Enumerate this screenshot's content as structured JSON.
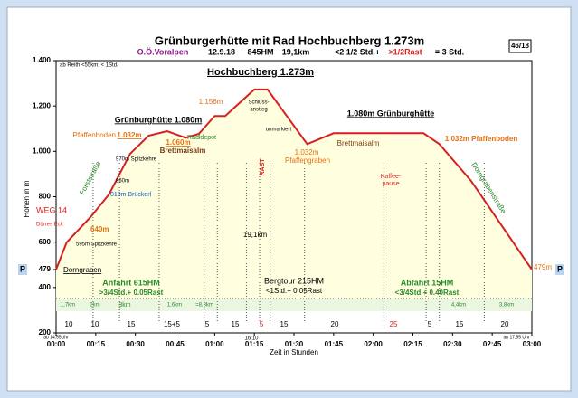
{
  "chart_data": {
    "type": "area",
    "title": "Grünburgerhütte mit Rad  Hochbuchberg 1.273m",
    "badge": "46/18",
    "subtitle": [
      "O.Ö.Voralpen",
      "12.9.18",
      "845HM",
      "19,1km",
      "<2 1/2 Std.+",
      ">1/2Rast",
      "= 3 Std."
    ],
    "x_label": "Zeit in Stunden",
    "y_label": "Höhen in m",
    "x": [
      0,
      4,
      13,
      20,
      28,
      35,
      42,
      49,
      54,
      60,
      64,
      75,
      80,
      95,
      105,
      115,
      139,
      145,
      157,
      180
    ],
    "values": [
      479,
      599,
      710,
      810,
      989,
      1069,
      1089,
      1060,
      1077,
      1156,
      1156,
      1273,
      1273,
      1032,
      1080,
      1080,
      1080,
      1032,
      870,
      479
    ],
    "color": "#d62020",
    "fill": "#ffffe0",
    "xlim": [
      0,
      180
    ],
    "ylim": [
      200,
      1400
    ],
    "xticks": [
      {
        "value": 0,
        "label": "00:00"
      },
      {
        "value": 15,
        "label": "00:15"
      },
      {
        "value": 30,
        "label": "00:30"
      },
      {
        "value": 45,
        "label": "00:45"
      },
      {
        "value": 60,
        "label": "01:00"
      },
      {
        "value": 75,
        "label": "01:15"
      },
      {
        "value": 90,
        "label": "01:30"
      },
      {
        "value": 105,
        "label": "01:45"
      },
      {
        "value": 120,
        "label": "02:00"
      },
      {
        "value": 135,
        "label": "02:15"
      },
      {
        "value": 150,
        "label": "02:30"
      },
      {
        "value": 165,
        "label": "02:45"
      },
      {
        "value": 180,
        "label": "03:00"
      }
    ],
    "yticks": [
      200,
      400,
      479,
      600,
      800,
      {
        "value": 1000,
        "label": "1.000"
      },
      {
        "value": 1200,
        "label": "1.200"
      },
      {
        "value": 1400,
        "label": "1.400"
      }
    ],
    "parking": [
      "P",
      "P"
    ],
    "annotations": [
      "ab Reith <55km; < 1Std.",
      "Hochbuchberg 1.273m",
      "Grünburghütte 1.080m",
      "1.080m Grünburghütte",
      "1.156m",
      "Pfaffenboden",
      "1.032m",
      "Radldepot",
      "1.060m",
      "Brettmaisalm",
      "970m Spitzkehre",
      "860m",
      "Forststraße",
      "810m Brückerl",
      "WEG 14",
      "Dürres Eck",
      "640m",
      "595m Spitzkehre",
      "Dorngraben",
      "Schluss-",
      "anstieg",
      "unmarkiert",
      "RAST",
      "1.032m",
      "Pfaffengraben",
      "Brettmaisalm",
      "1.032m Pfaffenboden",
      "Kaffee-",
      "pause",
      "Dorngrabenstraße",
      "19,1km",
      "Anfahrt 615HM",
      ">3/4Std.+ 0.05Rast",
      "Bergtour 215HM",
      "<1Std.+ 0.05Rast",
      "Abfahrt 15HM",
      "<3/4Std.+ 0.40Rast",
      "1,7km",
      "2km",
      "3km",
      "1,6km",
      "=8,3km",
      "4,4km",
      "3,8km",
      "10",
      "10",
      "15",
      "15+5",
      "5",
      "15",
      "5",
      "15",
      "20",
      "25",
      "5",
      "15",
      "20",
      "ab 14:55Uhr",
      "16:10",
      "an 17:55 Uhr",
      "479m"
    ]
  }
}
